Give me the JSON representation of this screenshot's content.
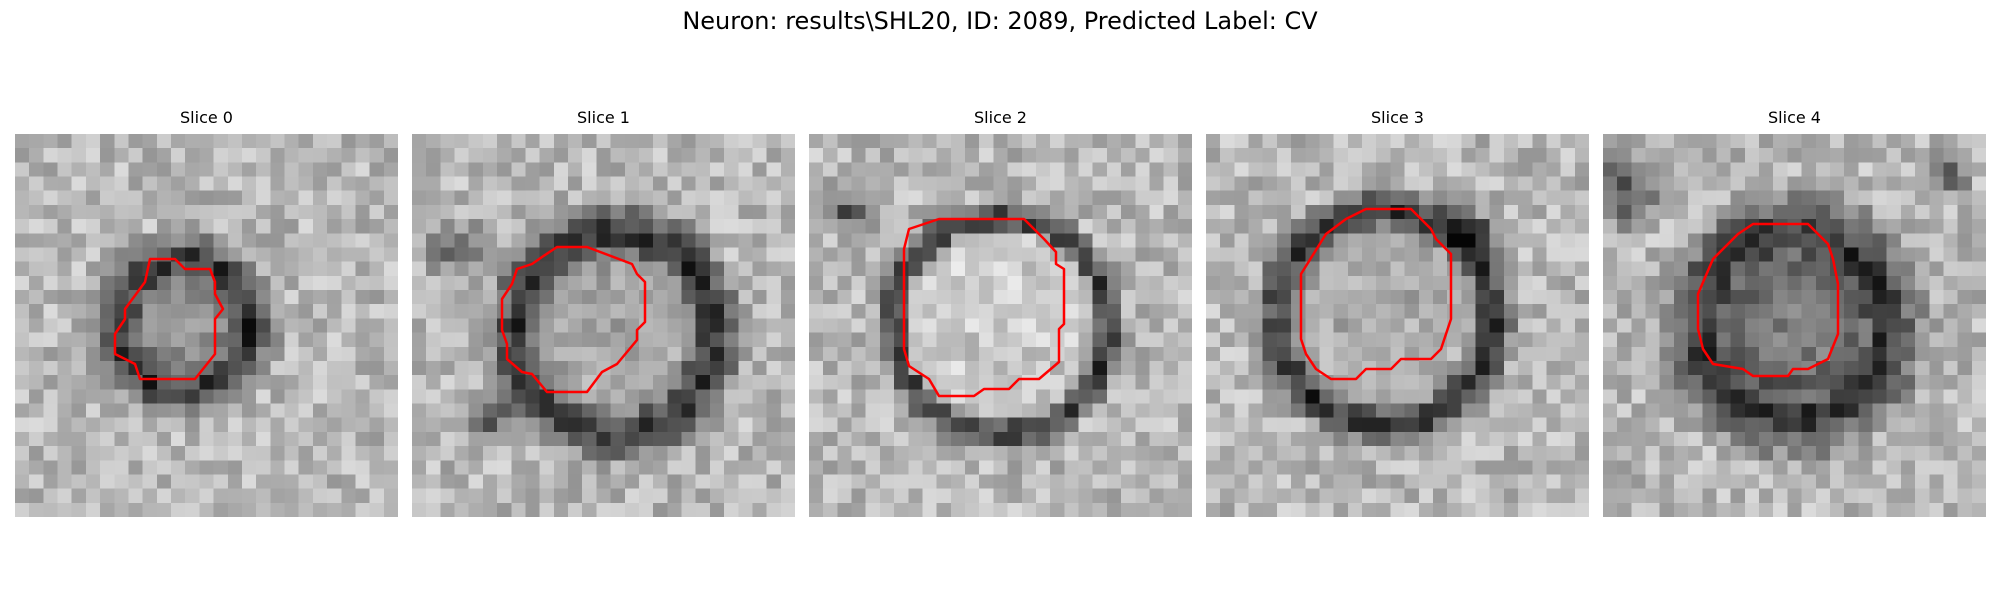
{
  "figure": {
    "title": "Neuron: results\\SHL20, ID: 2089, Predicted Label: CV"
  },
  "colors": {
    "contour": "#ff0000",
    "background": "#ffffff"
  },
  "slices": [
    {
      "label": "Slice 0"
    },
    {
      "label": "Slice 1"
    },
    {
      "label": "Slice 2"
    },
    {
      "label": "Slice 3"
    },
    {
      "label": "Slice 4"
    }
  ]
}
